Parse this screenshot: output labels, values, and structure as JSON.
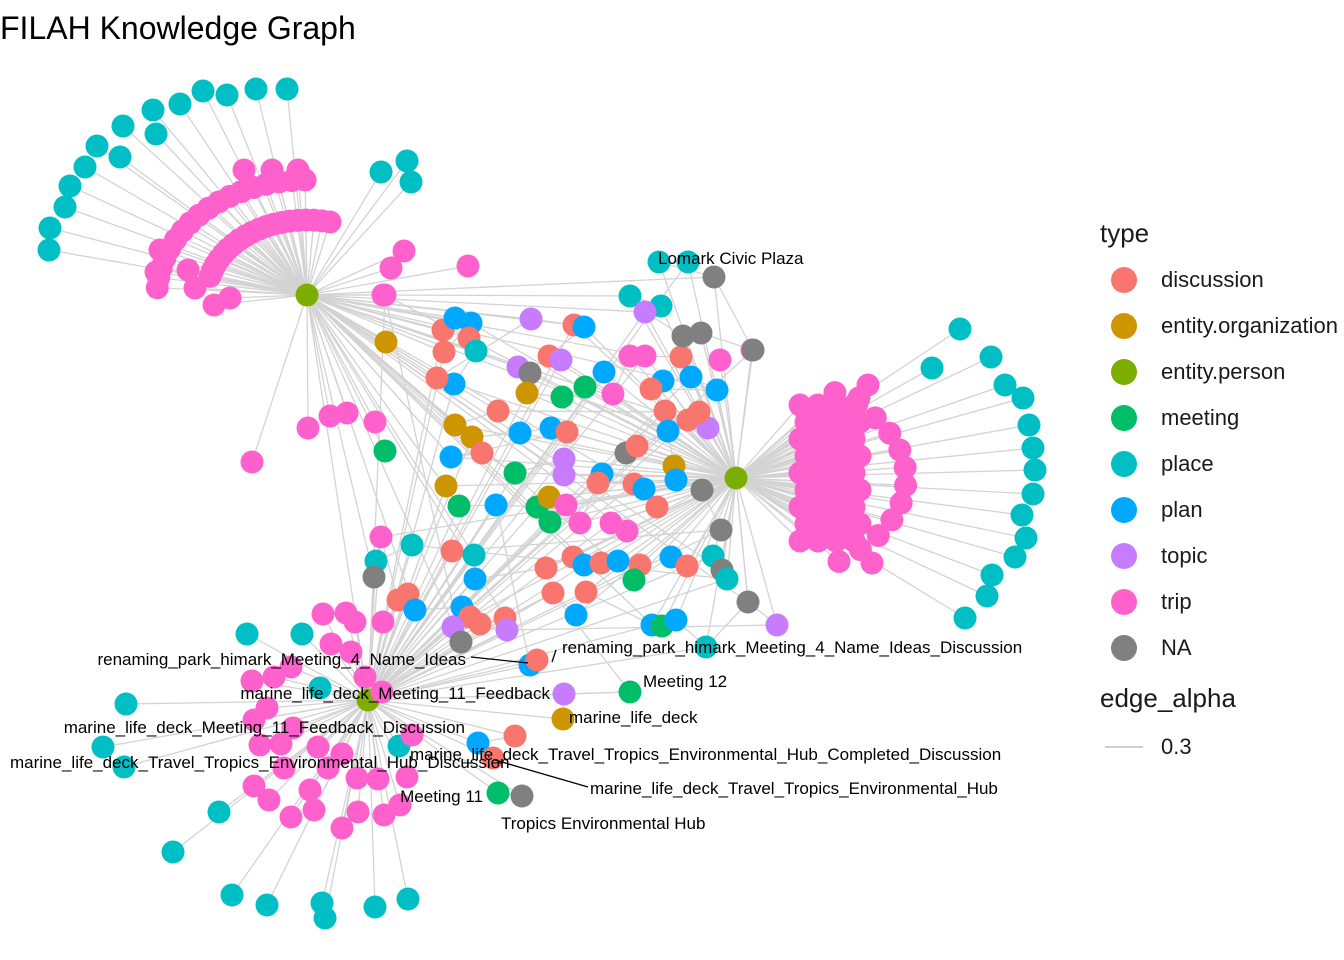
{
  "title": "FILAH Knowledge Graph",
  "colors": {
    "discussion": "#F8766D",
    "entity.organization": "#CD9600",
    "entity.person": "#7CAE00",
    "meeting": "#00BE67",
    "place": "#00BFC4",
    "plan": "#00A9FF",
    "topic": "#C77CFF",
    "trip": "#FF61CC",
    "NA": "#808080",
    "edge": "#d3d3d3"
  },
  "legend": {
    "type_title": "type",
    "types": [
      {
        "label": "discussion",
        "key": "discussion"
      },
      {
        "label": "entity.organization",
        "key": "entity.organization"
      },
      {
        "label": "entity.person",
        "key": "entity.person"
      },
      {
        "label": "meeting",
        "key": "meeting"
      },
      {
        "label": "place",
        "key": "place"
      },
      {
        "label": "plan",
        "key": "plan"
      },
      {
        "label": "topic",
        "key": "topic"
      },
      {
        "label": "trip",
        "key": "trip"
      },
      {
        "label": "NA",
        "key": "NA"
      }
    ],
    "edge_title": "edge_alpha",
    "edge_value": "0.3"
  },
  "hubs": [
    "hub-left",
    "hub-right",
    "hub-bottom"
  ],
  "labels": [
    "Lomark Civic Plaza",
    "renaming_park_himark_Meeting_4_Name_Ideas",
    "renaming_park_himark_Meeting_4_Name_Ideas_Discussion",
    "Meeting 12",
    "marine_life_deck_Meeting_11_Feedback",
    "marine_life_deck",
    "marine_life_deck_Meeting_11_Feedback_Discussion",
    "marine_life_deck_Travel_Tropics_Environmental_Hub_Completed_Discussion",
    "marine_life_deck_Travel_Tropics_Environmental_Hub_Discussion",
    "marine_life_deck_Travel_Tropics_Environmental_Hub",
    "Meeting 11",
    "Tropics Environmental Hub"
  ]
}
